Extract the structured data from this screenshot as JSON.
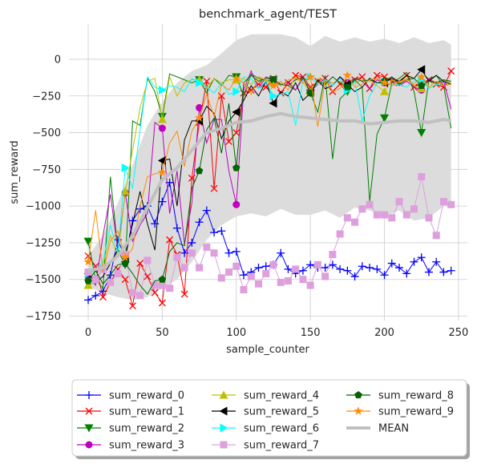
{
  "chart_data": {
    "type": "line",
    "title": "benchmark_agent/TEST",
    "xlabel": "sample_counter",
    "ylabel": "sum_reward",
    "xlim": [
      -13,
      256
    ],
    "ylim": [
      -1780,
      240
    ],
    "xticks": [
      0,
      50,
      100,
      150,
      200,
      250
    ],
    "yticks": [
      0,
      -250,
      -500,
      -750,
      -1000,
      -1250,
      -1500,
      -1750
    ],
    "ytick_labels": [
      "0",
      "−250",
      "−500",
      "−750",
      "−1000",
      "−1250",
      "−1500",
      "−1750"
    ],
    "grid": true,
    "legend_position": "bottom",
    "band": {
      "name": "MEAN",
      "color": "#c0c0c0",
      "fill": "#dcdcdc",
      "x": [
        0,
        10,
        20,
        30,
        40,
        50,
        60,
        70,
        80,
        90,
        100,
        110,
        120,
        130,
        140,
        150,
        160,
        170,
        180,
        190,
        200,
        210,
        220,
        230,
        240,
        245
      ],
      "mean": [
        -1440,
        -1420,
        -1340,
        -1200,
        -1010,
        -820,
        -740,
        -620,
        -500,
        -470,
        -430,
        -420,
        -390,
        -370,
        -390,
        -400,
        -410,
        -420,
        -420,
        -440,
        -430,
        -420,
        -420,
        -430,
        -410,
        -420
      ],
      "upper": [
        -1340,
        -1200,
        -980,
        -720,
        -450,
        -290,
        -160,
        -80,
        -40,
        40,
        130,
        170,
        170,
        170,
        150,
        90,
        160,
        120,
        150,
        120,
        140,
        110,
        150,
        110,
        130,
        100
      ],
      "lower": [
        -1550,
        -1590,
        -1620,
        -1640,
        -1620,
        -1560,
        -1500,
        -1380,
        -1230,
        -1130,
        -1070,
        -1050,
        -1070,
        -1020,
        -1060,
        -1060,
        -1030,
        -1080,
        -1010,
        -1030,
        -1070,
        -1030,
        -1100,
        -1080,
        -1000,
        -1010
      ]
    },
    "series": [
      {
        "name": "sum_reward_0",
        "color": "#0000ff",
        "marker": "plus",
        "x": [
          0,
          5,
          10,
          15,
          20,
          25,
          30,
          35,
          40,
          45,
          50,
          55,
          60,
          65,
          70,
          75,
          80,
          85,
          90,
          95,
          100,
          105,
          110,
          115,
          120,
          125,
          130,
          135,
          140,
          145,
          150,
          155,
          160,
          165,
          170,
          175,
          180,
          185,
          190,
          195,
          200,
          205,
          210,
          215,
          220,
          225,
          230,
          235,
          240,
          245
        ],
        "y": [
          -1640,
          -1610,
          -1580,
          -1470,
          -1230,
          -1350,
          -1100,
          -1020,
          -1000,
          -1120,
          -970,
          -840,
          -1150,
          -1320,
          -1250,
          -1110,
          -1030,
          -1180,
          -1170,
          -1320,
          -1310,
          -1470,
          -1450,
          -1420,
          -1410,
          -1400,
          -1320,
          -1430,
          -1460,
          -1440,
          -1400,
          -1420,
          -1420,
          -1400,
          -1430,
          -1440,
          -1480,
          -1410,
          -1420,
          -1430,
          -1470,
          -1390,
          -1420,
          -1460,
          -1380,
          -1350,
          -1450,
          -1380,
          -1450,
          -1440
        ],
        "mark_every": 5
      },
      {
        "name": "sum_reward_1",
        "color": "#ff0000",
        "marker": "x",
        "x": [
          0,
          5,
          10,
          15,
          20,
          25,
          30,
          35,
          40,
          45,
          50,
          55,
          60,
          65,
          70,
          75,
          80,
          85,
          90,
          95,
          100,
          105,
          110,
          115,
          120,
          125,
          130,
          135,
          140,
          145,
          150,
          155,
          160,
          165,
          170,
          175,
          180,
          185,
          190,
          195,
          200,
          205,
          210,
          215,
          220,
          225,
          230,
          235,
          240,
          245
        ],
        "y": [
          -1340,
          -1410,
          -1620,
          -1520,
          -1430,
          -1500,
          -1680,
          -1390,
          -1480,
          -1590,
          -1660,
          -1230,
          -1330,
          -1600,
          -810,
          -430,
          -150,
          -880,
          -250,
          -560,
          -500,
          -230,
          -210,
          -170,
          -190,
          -130,
          -230,
          -160,
          -110,
          -120,
          -190,
          -150,
          -130,
          -220,
          -170,
          -180,
          -140,
          -120,
          -200,
          -110,
          -120,
          -150,
          -160,
          -110,
          -190,
          -160,
          -140,
          -170,
          -190,
          -80
        ],
        "mark_every": 5
      },
      {
        "name": "sum_reward_2",
        "color": "#008000",
        "marker": "triangle-down",
        "x": [
          0,
          5,
          10,
          15,
          20,
          25,
          30,
          35,
          40,
          45,
          50,
          55,
          60,
          65,
          70,
          75,
          80,
          85,
          90,
          95,
          100,
          105,
          110,
          115,
          120,
          125,
          130,
          135,
          140,
          145,
          150,
          155,
          160,
          165,
          170,
          175,
          180,
          185,
          190,
          195,
          200,
          205,
          210,
          215,
          220,
          225,
          230,
          235,
          240,
          245
        ],
        "y": [
          -1240,
          -1500,
          -1560,
          -800,
          -1300,
          -1400,
          -420,
          -450,
          -130,
          -220,
          -390,
          -100,
          -120,
          -140,
          -160,
          -140,
          -230,
          -130,
          -180,
          -110,
          -120,
          -250,
          -100,
          -130,
          -150,
          -140,
          -170,
          -180,
          -210,
          -120,
          -230,
          -360,
          -110,
          -680,
          -270,
          -220,
          -140,
          -190,
          -970,
          -510,
          -400,
          -160,
          -130,
          -90,
          -220,
          -500,
          -140,
          -110,
          -180,
          -470
        ],
        "mark_every": 25
      },
      {
        "name": "sum_reward_3",
        "color": "#bf00bf",
        "marker": "circle",
        "x": [
          0,
          5,
          10,
          15,
          20,
          25,
          30,
          35,
          40,
          45,
          50,
          55,
          60,
          65,
          70,
          75,
          80,
          85,
          90,
          95,
          100,
          105,
          110,
          115,
          120,
          125,
          130,
          135,
          140,
          145,
          150,
          155,
          160,
          165,
          170,
          175,
          180,
          185,
          190,
          195,
          200,
          205,
          210,
          215,
          220,
          225,
          230,
          235,
          240,
          245
        ],
        "y": [
          -1480,
          -1540,
          -1200,
          -920,
          -1300,
          -910,
          -1240,
          -1130,
          -1050,
          -430,
          -470,
          -1050,
          -760,
          -1260,
          -980,
          -330,
          -570,
          -410,
          -410,
          -760,
          -990,
          -210,
          -80,
          -200,
          -120,
          -140,
          -180,
          -150,
          -210,
          -130,
          -220,
          -170,
          -130,
          -180,
          -120,
          -160,
          -130,
          -150,
          -200,
          -140,
          -160,
          -120,
          -180,
          -150,
          -190,
          -210,
          -130,
          -170,
          -150,
          -340
        ],
        "mark_every": 25
      },
      {
        "name": "sum_reward_4",
        "color": "#bfbf00",
        "marker": "triangle-up",
        "x": [
          0,
          5,
          10,
          15,
          20,
          25,
          30,
          35,
          40,
          45,
          50,
          55,
          60,
          65,
          70,
          75,
          80,
          85,
          90,
          95,
          100,
          105,
          110,
          115,
          120,
          125,
          130,
          135,
          140,
          145,
          150,
          155,
          160,
          165,
          170,
          175,
          180,
          185,
          190,
          195,
          200,
          205,
          210,
          215,
          220,
          225,
          230,
          235,
          240,
          245
        ],
        "y": [
          -1540,
          -1520,
          -1400,
          -1200,
          -1350,
          -900,
          -620,
          -330,
          -150,
          -130,
          -410,
          -120,
          -250,
          -160,
          -140,
          -140,
          -200,
          -130,
          -160,
          -140,
          -140,
          -130,
          -170,
          -120,
          -150,
          -160,
          -180,
          -140,
          -130,
          -160,
          -220,
          -130,
          -140,
          -160,
          -150,
          -170,
          -160,
          -140,
          -150,
          -180,
          -220,
          -140,
          -160,
          -130,
          -180,
          -200,
          -150,
          -170,
          -140,
          -160
        ],
        "mark_every": 25
      },
      {
        "name": "sum_reward_5",
        "color": "#000000",
        "marker": "triangle-left",
        "x": [
          0,
          5,
          10,
          15,
          20,
          25,
          30,
          35,
          40,
          45,
          50,
          55,
          60,
          65,
          70,
          75,
          80,
          85,
          90,
          95,
          100,
          105,
          110,
          115,
          120,
          125,
          130,
          135,
          140,
          145,
          150,
          155,
          160,
          165,
          170,
          175,
          180,
          185,
          190,
          195,
          200,
          205,
          210,
          215,
          220,
          225,
          230,
          235,
          240,
          245
        ],
        "y": [
          -1460,
          -1520,
          -1480,
          -1390,
          -1300,
          -1350,
          -1120,
          -900,
          -1120,
          -1300,
          -690,
          -680,
          -1000,
          -550,
          -420,
          -420,
          -320,
          -370,
          -540,
          -420,
          -360,
          -280,
          -180,
          -250,
          -150,
          -300,
          -220,
          -250,
          -160,
          -280,
          -230,
          -140,
          -200,
          -180,
          -120,
          -170,
          -220,
          -190,
          -130,
          -160,
          -160,
          -130,
          -150,
          -110,
          -130,
          -70,
          -150,
          -110,
          -150,
          -170
        ],
        "mark_every": 25
      },
      {
        "name": "sum_reward_6",
        "color": "#00ffff",
        "marker": "triangle-right",
        "x": [
          0,
          5,
          10,
          15,
          20,
          25,
          30,
          35,
          40,
          45,
          50,
          55,
          60,
          65,
          70,
          75,
          80,
          85,
          90,
          95,
          100,
          105,
          110,
          115,
          120,
          125,
          130,
          135,
          140,
          145,
          150,
          155,
          160,
          165,
          170,
          175,
          180,
          185,
          190,
          195,
          200,
          205,
          210,
          215,
          220,
          225,
          230,
          235,
          240,
          245
        ],
        "y": [
          -1460,
          -1440,
          -1380,
          -1130,
          -1320,
          -740,
          -880,
          -480,
          -120,
          -190,
          -210,
          -180,
          -190,
          -220,
          -130,
          -160,
          -190,
          -230,
          -160,
          -240,
          -220,
          -120,
          -130,
          -200,
          -150,
          -250,
          -240,
          -220,
          -450,
          -140,
          -120,
          -170,
          -140,
          -180,
          -130,
          -210,
          -150,
          -420,
          -250,
          -160,
          -150,
          -180,
          -170,
          -190,
          -150,
          -140,
          -200,
          -170,
          -180,
          -170
        ],
        "mark_every": 25
      },
      {
        "name": "sum_reward_7",
        "color": "#dda0dd",
        "marker": "square",
        "x": [
          0,
          5,
          10,
          15,
          20,
          25,
          30,
          35,
          40,
          45,
          50,
          55,
          60,
          65,
          70,
          75,
          80,
          85,
          90,
          95,
          100,
          105,
          110,
          115,
          120,
          125,
          130,
          135,
          140,
          145,
          150,
          155,
          160,
          165,
          170,
          175,
          180,
          185,
          190,
          195,
          200,
          205,
          210,
          215,
          220,
          225,
          230,
          235,
          240,
          245
        ],
        "y": [
          -1450,
          -1500,
          -1430,
          -1520,
          -1460,
          -1330,
          -1590,
          -1610,
          -1370,
          -1540,
          -1540,
          -1560,
          -1350,
          -1420,
          -1320,
          -1420,
          -1280,
          -1320,
          -1490,
          -1450,
          -1410,
          -1570,
          -1480,
          -1530,
          -1460,
          -1400,
          -1520,
          -1510,
          -1430,
          -1500,
          -1540,
          -1400,
          -1480,
          -1330,
          -1190,
          -1080,
          -1110,
          -1020,
          -990,
          -1060,
          -1060,
          -1080,
          -970,
          -1060,
          -1020,
          -800,
          -1080,
          -1200,
          -970,
          -990
        ],
        "mark_every": 5
      },
      {
        "name": "sum_reward_8",
        "color": "#006400",
        "marker": "pentagon",
        "x": [
          0,
          5,
          10,
          15,
          20,
          25,
          30,
          35,
          40,
          45,
          50,
          55,
          60,
          65,
          70,
          75,
          80,
          85,
          90,
          95,
          100,
          105,
          110,
          115,
          120,
          125,
          130,
          135,
          140,
          145,
          150,
          155,
          160,
          165,
          170,
          175,
          180,
          185,
          190,
          195,
          200,
          205,
          210,
          215,
          220,
          225,
          230,
          235,
          240,
          245
        ],
        "y": [
          -1510,
          -1440,
          -1530,
          -1470,
          -1400,
          -1390,
          -1460,
          -1540,
          -1600,
          -1510,
          -1500,
          -1310,
          -1250,
          -1270,
          -880,
          -760,
          -480,
          -400,
          -640,
          -300,
          -740,
          -160,
          -110,
          -150,
          -130,
          -140,
          -170,
          -180,
          -140,
          -120,
          -230,
          -150,
          -170,
          -120,
          -160,
          -190,
          -130,
          -150,
          -140,
          -160,
          -150,
          -120,
          -170,
          -140,
          -130,
          -180,
          -150,
          -160,
          -140,
          -150
        ],
        "mark_every": 25
      },
      {
        "name": "sum_reward_9",
        "color": "#ff8c00",
        "marker": "star",
        "x": [
          0,
          5,
          10,
          15,
          20,
          25,
          30,
          35,
          40,
          45,
          50,
          55,
          60,
          65,
          70,
          75,
          80,
          85,
          90,
          95,
          100,
          105,
          110,
          115,
          120,
          125,
          130,
          135,
          140,
          145,
          150,
          155,
          160,
          165,
          170,
          175,
          180,
          185,
          190,
          195,
          200,
          205,
          210,
          215,
          220,
          225,
          230,
          235,
          240,
          245
        ],
        "y": [
          -1380,
          -1030,
          -1450,
          -1240,
          -1170,
          -1350,
          -1290,
          -1000,
          -800,
          -780,
          -770,
          -570,
          -490,
          -730,
          -490,
          -400,
          -240,
          -390,
          -170,
          -210,
          -130,
          -160,
          -240,
          -120,
          -140,
          -180,
          -150,
          -210,
          -120,
          -160,
          -120,
          -460,
          -140,
          -220,
          -200,
          -110,
          -190,
          -170,
          -140,
          -130,
          -160,
          -180,
          -150,
          -140,
          -170,
          -120,
          -190,
          -150,
          -180,
          -170
        ],
        "mark_every": 25
      }
    ],
    "legend": {
      "columns": [
        [
          "sum_reward_0",
          "sum_reward_1",
          "sum_reward_2",
          "sum_reward_3"
        ],
        [
          "sum_reward_4",
          "sum_reward_5",
          "sum_reward_6",
          "sum_reward_7"
        ],
        [
          "sum_reward_8",
          "sum_reward_9",
          "MEAN"
        ]
      ]
    }
  }
}
